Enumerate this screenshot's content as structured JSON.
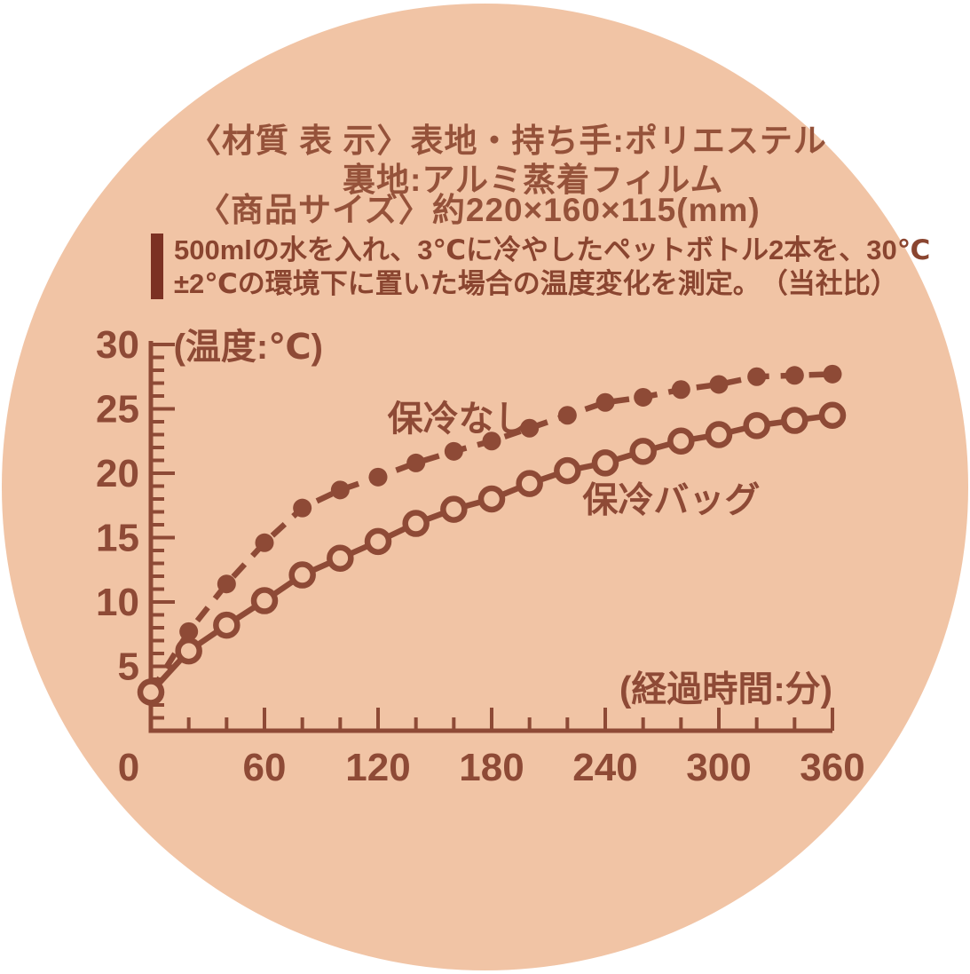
{
  "label": {
    "material_line1": "〈材質 表 示〉表地・持ち手:ポリエステル",
    "material_line2": "裏地:アルミ蒸着フィルム",
    "size_line": "〈商品サイズ〉約220×160×115(mm)",
    "note_line1": "500mlの水を入れ、3℃に冷やしたペットボトル2本を、30℃",
    "note_line2": "±2℃の環境下に置いた場合の温度変化を測定。　（当社比）"
  },
  "chart_data": {
    "type": "line",
    "title": "",
    "xlabel": "(経過時間:分)",
    "ylabel": "(温度:℃)",
    "xlim": [
      0,
      360
    ],
    "ylim": [
      0,
      30
    ],
    "grid": false,
    "legend": "inline-labels",
    "x": [
      0,
      20,
      40,
      60,
      80,
      100,
      120,
      140,
      160,
      180,
      200,
      220,
      240,
      260,
      280,
      300,
      320,
      340,
      360
    ],
    "series": [
      {
        "name": "保冷なし",
        "line_style": "dashed",
        "marker": "filled",
        "skip_first_marker": true,
        "values": [
          3.0,
          7.7,
          11.4,
          14.6,
          17.3,
          18.7,
          19.7,
          20.8,
          21.7,
          22.5,
          23.5,
          24.5,
          25.5,
          25.9,
          26.5,
          26.9,
          27.5,
          27.6,
          27.7
        ]
      },
      {
        "name": "保冷バッグ",
        "line_style": "solid",
        "marker": "open",
        "skip_first_marker": false,
        "values": [
          3.0,
          6.2,
          8.2,
          10.1,
          12.1,
          13.4,
          14.7,
          16.1,
          17.2,
          18.0,
          19.2,
          20.2,
          20.8,
          21.7,
          22.5,
          23.0,
          23.7,
          24.1,
          24.5
        ]
      }
    ],
    "x_major_ticks": [
      0,
      60,
      120,
      180,
      240,
      300,
      360
    ],
    "x_minor_step": 20,
    "y_major_ticks": [
      5,
      10,
      15,
      20,
      25,
      30
    ],
    "y_minor_step": 1,
    "series_labels": [
      {
        "text": "保冷なし",
        "x": 125,
        "y": 23.3,
        "anchor": "start"
      },
      {
        "text": "保冷バッグ",
        "x": 228,
        "y": 17.0,
        "anchor": "start"
      }
    ],
    "ylabel_pos": {
      "x": 12,
      "y": 28.9,
      "anchor": "start"
    },
    "xlabel_pos": {
      "x": 360,
      "y": 2.3,
      "anchor": "end"
    },
    "colors": {
      "ink": "#8e4a36",
      "background": "#f1c4a5"
    }
  }
}
